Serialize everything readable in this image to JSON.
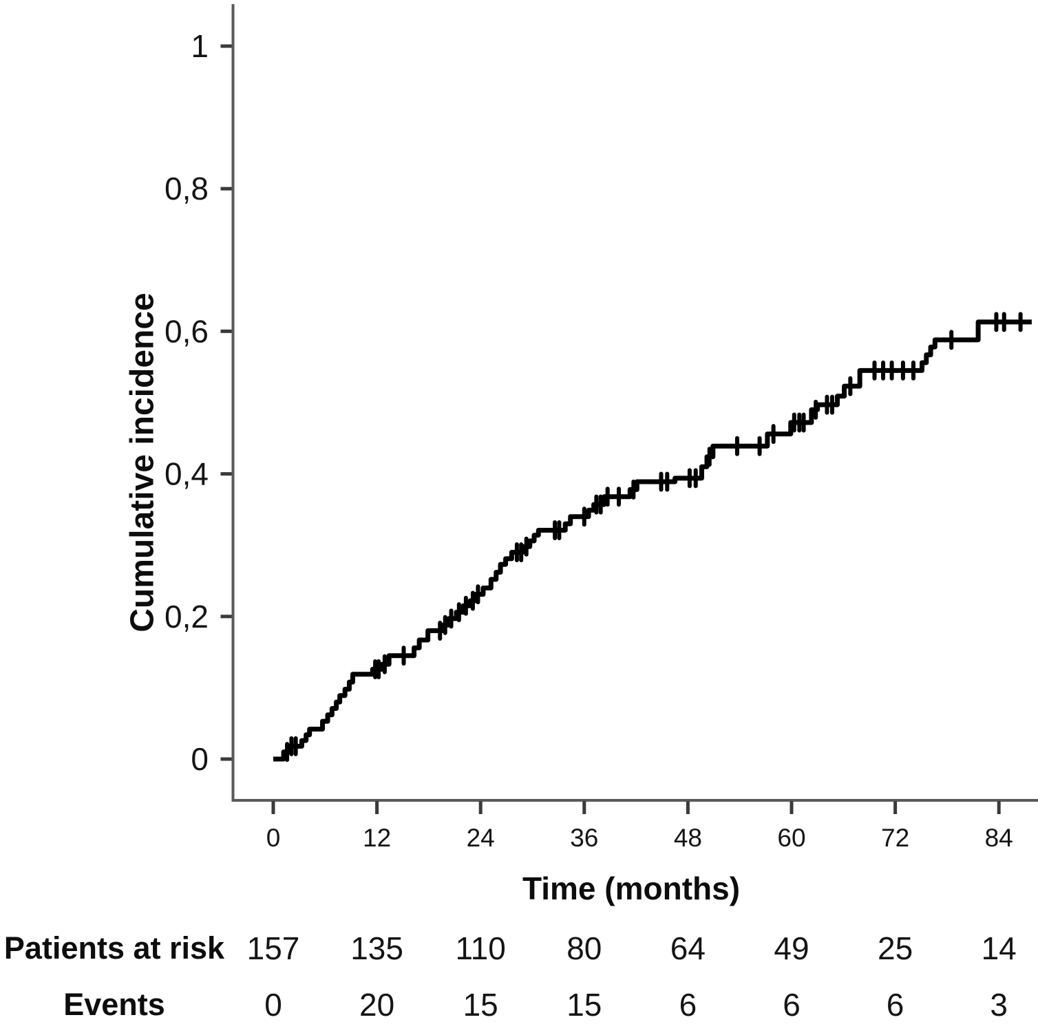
{
  "figure_title": "",
  "chart_data": {
    "type": "line",
    "variant": "kaplan_meier_cumulative_incidence_step_curve",
    "title": "",
    "xlabel": "Time (months)",
    "ylabel": "Cumulative incidence",
    "xlim": [
      0,
      88.5
    ],
    "ylim": [
      0,
      1
    ],
    "grid": false,
    "legend": false,
    "decimal_separator": ",",
    "x_ticks": {
      "values": [
        0,
        12,
        24,
        36,
        48,
        60,
        72,
        84
      ],
      "labels": [
        "0",
        "12",
        "24",
        "36",
        "48",
        "60",
        "72",
        "84"
      ]
    },
    "y_ticks": {
      "values": [
        1,
        0.8,
        0.6,
        0.4,
        0.2,
        0
      ],
      "labels": [
        "1",
        "0,8",
        "0,6",
        "0,4",
        "0,2",
        "0"
      ]
    },
    "series": [
      {
        "name": "Cumulative incidence",
        "color": "#000000",
        "axis_color": "#595959",
        "steps": [
          [
            0,
            0
          ],
          [
            1.2,
            0.01
          ],
          [
            1.9,
            0.018
          ],
          [
            3.3,
            0.026
          ],
          [
            3.8,
            0.034
          ],
          [
            4.2,
            0.042
          ],
          [
            5.7,
            0.053
          ],
          [
            6.3,
            0.062
          ],
          [
            6.8,
            0.071
          ],
          [
            7.3,
            0.08
          ],
          [
            7.7,
            0.089
          ],
          [
            8.3,
            0.098
          ],
          [
            8.8,
            0.108
          ],
          [
            9.2,
            0.119
          ],
          [
            11.5,
            0.126
          ],
          [
            12.6,
            0.133
          ],
          [
            13.4,
            0.145
          ],
          [
            16.3,
            0.156
          ],
          [
            16.9,
            0.167
          ],
          [
            17.9,
            0.18
          ],
          [
            19.6,
            0.188
          ],
          [
            20.3,
            0.197
          ],
          [
            21.2,
            0.206
          ],
          [
            22.0,
            0.215
          ],
          [
            22.8,
            0.222
          ],
          [
            23.4,
            0.231
          ],
          [
            24.3,
            0.24
          ],
          [
            25.2,
            0.252
          ],
          [
            25.8,
            0.262
          ],
          [
            26.3,
            0.273
          ],
          [
            26.9,
            0.281
          ],
          [
            27.6,
            0.29
          ],
          [
            28.9,
            0.298
          ],
          [
            29.7,
            0.306
          ],
          [
            30.2,
            0.314
          ],
          [
            30.7,
            0.321
          ],
          [
            33.8,
            0.33
          ],
          [
            34.4,
            0.34
          ],
          [
            36.5,
            0.349
          ],
          [
            37.1,
            0.357
          ],
          [
            38.3,
            0.368
          ],
          [
            41.3,
            0.378
          ],
          [
            42.1,
            0.389
          ],
          [
            46.5,
            0.394
          ],
          [
            49.6,
            0.41
          ],
          [
            50.2,
            0.424
          ],
          [
            50.9,
            0.439
          ],
          [
            57.2,
            0.456
          ],
          [
            59.9,
            0.472
          ],
          [
            62.3,
            0.49
          ],
          [
            63.0,
            0.497
          ],
          [
            65.3,
            0.509
          ],
          [
            66.1,
            0.523
          ],
          [
            67.9,
            0.545
          ],
          [
            75.1,
            0.556
          ],
          [
            75.6,
            0.567
          ],
          [
            76.1,
            0.578
          ],
          [
            76.6,
            0.588
          ],
          [
            81.6,
            0.613
          ]
        ],
        "end_x": 87.8,
        "censor_marks": [
          1.6,
          2.1,
          2.6,
          11.8,
          12.2,
          12.9,
          15.1,
          19.3,
          19.9,
          20.6,
          21.5,
          22.3,
          23.1,
          23.7,
          28.2,
          28.7,
          29.3,
          32.6,
          33.1,
          36.0,
          37.4,
          37.9,
          38.7,
          40.0,
          41.7,
          44.9,
          45.6,
          48.2,
          48.9,
          50.5,
          53.7,
          56.3,
          57.9,
          60.3,
          60.9,
          61.4,
          62.8,
          64.1,
          64.7,
          66.8,
          69.6,
          70.6,
          71.6,
          72.9,
          74.1,
          78.5,
          83.7,
          84.6,
          86.5
        ]
      }
    ],
    "risk_table": {
      "row_labels": [
        "Patients at risk",
        "Events"
      ],
      "times": [
        0,
        12,
        24,
        36,
        48,
        60,
        72,
        84
      ],
      "patients_at_risk": [
        "157",
        "135",
        "110",
        "80",
        "64",
        "49",
        "25",
        "14"
      ],
      "events": [
        "0",
        "20",
        "15",
        "15",
        "6",
        "6",
        "6",
        "3"
      ]
    }
  }
}
